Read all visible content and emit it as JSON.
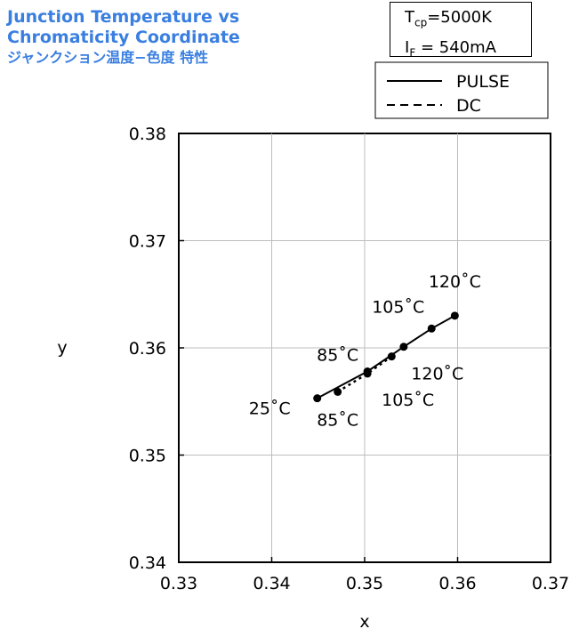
{
  "header": {
    "title_line1": "Junction Temperature vs",
    "title_line2": "Chromaticity Coordinate",
    "title_line3": "ジャンクション温度−色度 特性",
    "title_color": "#3a7fe0"
  },
  "conditions": {
    "tcp_symbol": "T",
    "tcp_sub": "cp",
    "tcp_value": "=5000K",
    "if_symbol": "I",
    "if_sub": "F",
    "if_value": " = 540mA"
  },
  "chart_data": {
    "type": "scatter",
    "xlabel": "x",
    "ylabel": "y",
    "xlim": [
      0.33,
      0.37
    ],
    "ylim": [
      0.34,
      0.38
    ],
    "xticks": [
      "0.33",
      "0.34",
      "0.35",
      "0.36",
      "0.37"
    ],
    "yticks": [
      "0.34",
      "0.35",
      "0.36",
      "0.37",
      "0.38"
    ],
    "grid": true,
    "legend": "top-right",
    "series": [
      {
        "name": "PULSE",
        "style": "solid",
        "points": [
          {
            "x": 0.3449,
            "y": 0.3553
          },
          {
            "x": 0.3503,
            "y": 0.3578
          },
          {
            "x": 0.3542,
            "y": 0.3601
          },
          {
            "x": 0.3572,
            "y": 0.3618
          },
          {
            "x": 0.3597,
            "y": 0.363
          }
        ]
      },
      {
        "name": "DC",
        "style": "dashed",
        "points": [
          {
            "x": 0.3471,
            "y": 0.3559
          },
          {
            "x": 0.3503,
            "y": 0.3576
          },
          {
            "x": 0.3529,
            "y": 0.3592
          }
        ]
      }
    ],
    "annotations": [
      {
        "text": "25˚C",
        "x": 0.3449,
        "y": 0.3553
      },
      {
        "text": "85˚C",
        "x": 0.3503,
        "y": 0.3578
      },
      {
        "text": "105˚C",
        "x": 0.3572,
        "y": 0.3618
      },
      {
        "text": "120˚C",
        "x": 0.3597,
        "y": 0.363
      },
      {
        "text": "85˚C",
        "x": 0.3471,
        "y": 0.3559
      },
      {
        "text": "105˚C",
        "x": 0.3503,
        "y": 0.3576
      },
      {
        "text": "120˚C",
        "x": 0.3529,
        "y": 0.3592
      }
    ]
  }
}
